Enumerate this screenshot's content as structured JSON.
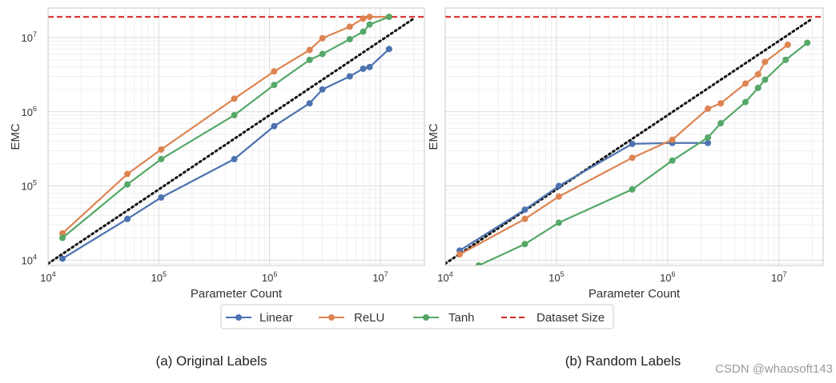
{
  "chart_data": [
    {
      "type": "line",
      "title": "",
      "caption": "(a) Original Labels",
      "xlabel": "Parameter Count",
      "ylabel": "EMC",
      "xscale": "log",
      "yscale": "log",
      "xlim": [
        10000,
        25000000
      ],
      "ylim": [
        8500,
        25000000
      ],
      "xticks": [
        {
          "value": 10000,
          "base": "10",
          "exp": "4"
        },
        {
          "value": 100000,
          "base": "10",
          "exp": "5"
        },
        {
          "value": 1000000,
          "base": "10",
          "exp": "6"
        },
        {
          "value": 10000000,
          "base": "10",
          "exp": "7"
        }
      ],
      "yticks": [
        {
          "value": 10000,
          "base": "10",
          "exp": "4"
        },
        {
          "value": 100000,
          "base": "10",
          "exp": "5"
        },
        {
          "value": 1000000,
          "base": "10",
          "exp": "6"
        },
        {
          "value": 10000000,
          "base": "10",
          "exp": "7"
        }
      ],
      "show_yticklabels": true,
      "grid": true,
      "dataset_size": 19000000,
      "diagonal": {
        "from": [
          10000,
          9000
        ],
        "to": [
          20000000,
          18000000
        ]
      },
      "series": [
        {
          "name": "Linear",
          "color": "#4c72b0",
          "x": [
            13500,
            52000,
            105000,
            480000,
            1100000,
            2300000,
            3000000,
            5300000,
            7000000,
            8000000,
            12000000
          ],
          "y": [
            10500,
            36000,
            70000,
            230000,
            640000,
            1300000,
            2000000,
            3000000,
            3800000,
            4000000,
            7000000
          ]
        },
        {
          "name": "ReLU",
          "color": "#dd8452",
          "x": [
            13500,
            52000,
            105000,
            480000,
            1100000,
            2300000,
            3000000,
            5300000,
            7000000,
            8000000,
            12000000
          ],
          "y": [
            23000,
            145000,
            310000,
            1500000,
            3500000,
            6800000,
            9800000,
            14000000,
            18000000,
            19000000,
            19000000
          ]
        },
        {
          "name": "Tanh",
          "color": "#55a868",
          "x": [
            13500,
            52000,
            105000,
            480000,
            1100000,
            2300000,
            3000000,
            5300000,
            7000000,
            8000000,
            12000000
          ],
          "y": [
            20000,
            105000,
            230000,
            900000,
            2300000,
            5000000,
            6000000,
            9500000,
            12000000,
            15000000,
            19000000
          ]
        }
      ]
    },
    {
      "type": "line",
      "title": "",
      "caption": "(b) Random Labels",
      "xlabel": "Parameter Count",
      "ylabel": "EMC",
      "xscale": "log",
      "yscale": "log",
      "xlim": [
        10000,
        25000000
      ],
      "ylim": [
        8500,
        25000000
      ],
      "xticks": [
        {
          "value": 10000,
          "base": "10",
          "exp": "4"
        },
        {
          "value": 100000,
          "base": "10",
          "exp": "5"
        },
        {
          "value": 1000000,
          "base": "10",
          "exp": "6"
        },
        {
          "value": 10000000,
          "base": "10",
          "exp": "7"
        }
      ],
      "yticks": [
        {
          "value": 10000,
          "base": "10",
          "exp": "4"
        },
        {
          "value": 100000,
          "base": "10",
          "exp": "5"
        },
        {
          "value": 1000000,
          "base": "10",
          "exp": "6"
        },
        {
          "value": 10000000,
          "base": "10",
          "exp": "7"
        }
      ],
      "show_yticklabels": false,
      "grid": true,
      "dataset_size": 19000000,
      "diagonal": {
        "from": [
          10000,
          9000
        ],
        "to": [
          20000000,
          18000000
        ]
      },
      "series": [
        {
          "name": "Linear",
          "color": "#4c72b0",
          "x": [
            13500,
            52000,
            105000,
            480000,
            1100000,
            2300000
          ],
          "y": [
            13500,
            48000,
            100000,
            370000,
            380000,
            380000
          ]
        },
        {
          "name": "ReLU",
          "color": "#dd8452",
          "x": [
            13500,
            52000,
            105000,
            480000,
            1100000,
            2300000,
            3000000,
            5000000,
            6500000,
            7500000,
            12000000
          ],
          "y": [
            12000,
            36000,
            72000,
            240000,
            420000,
            1100000,
            1300000,
            2400000,
            3200000,
            4700000,
            8000000
          ]
        },
        {
          "name": "Tanh",
          "color": "#55a868",
          "x": [
            20000,
            52000,
            105000,
            480000,
            1100000,
            2300000,
            3000000,
            5000000,
            6500000,
            7500000,
            11500000,
            18000000
          ],
          "y": [
            8500,
            16500,
            32000,
            90000,
            220000,
            450000,
            700000,
            1350000,
            2100000,
            2700000,
            5000000,
            8500000
          ]
        }
      ]
    }
  ],
  "legend": [
    {
      "label": "Linear",
      "color": "#4c72b0",
      "style": "marker-line"
    },
    {
      "label": "ReLU",
      "color": "#dd8452",
      "style": "marker-line"
    },
    {
      "label": "Tanh",
      "color": "#55a868",
      "style": "marker-line"
    },
    {
      "label": "Dataset Size",
      "color": "#d62728",
      "style": "dashed"
    }
  ],
  "watermark": "CSDN @whaosoft143"
}
